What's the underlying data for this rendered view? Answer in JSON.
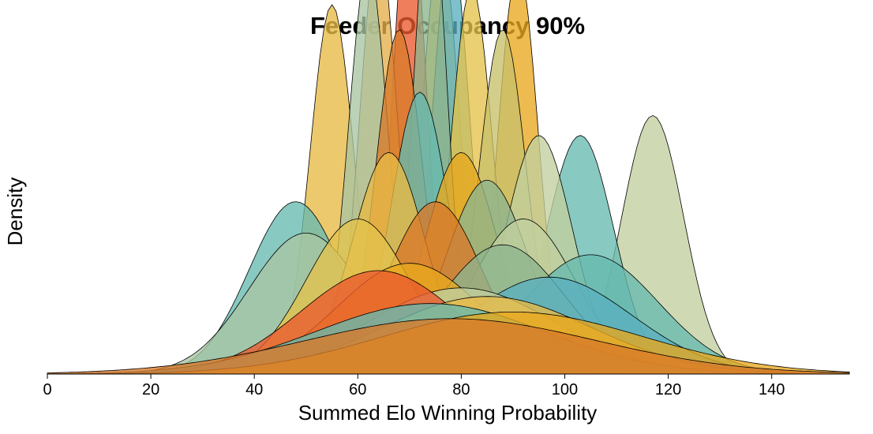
{
  "chart_data": {
    "type": "area",
    "title": "Feeder Occupancy 90%",
    "xlabel": "Summed Elo Winning Probability",
    "ylabel": "Density",
    "xlim": [
      0,
      155
    ],
    "ylim": [
      0,
      0.082
    ],
    "x_ticks": [
      0,
      20,
      40,
      60,
      80,
      100,
      120,
      140
    ],
    "x_tick_labels": [
      "0",
      "20",
      "40",
      "60",
      "80",
      "100",
      "120",
      "140"
    ],
    "y_ticks_shown": false,
    "grid": false,
    "legend": "none",
    "palette": [
      "#E8A81E",
      "#EB5A2E",
      "#66BAB0",
      "#C2CF9F",
      "#E4C34C",
      "#8DB58E",
      "#D97A2A",
      "#5AAFBF",
      "#A9B56A",
      "#E06A55"
    ],
    "series": [
      {
        "mean": 55,
        "sd": 4.2,
        "color": "#E8BA45"
      },
      {
        "mean": 76,
        "sd": 3.6,
        "color": "#E4C34C"
      },
      {
        "mean": 78,
        "sd": 3.6,
        "color": "#5AAFBF"
      },
      {
        "mean": 117,
        "sd": 6.0,
        "color": "#C2CF9F"
      },
      {
        "mean": 103,
        "sd": 6.5,
        "color": "#66BAB0"
      },
      {
        "mean": 70,
        "sd": 3.2,
        "color": "#EB5A2E"
      },
      {
        "mean": 64,
        "sd": 3.6,
        "color": "#E4B04A"
      },
      {
        "mean": 62,
        "sd": 3.8,
        "color": "#A9C5A3"
      },
      {
        "mean": 91,
        "sd": 3.8,
        "color": "#E8A81E"
      },
      {
        "mean": 82,
        "sd": 4.0,
        "color": "#E4C34C"
      },
      {
        "mean": 74,
        "sd": 3.2,
        "color": "#8DB58E"
      },
      {
        "mean": 68,
        "sd": 4.5,
        "color": "#D97A2A"
      },
      {
        "mean": 88,
        "sd": 4.5,
        "color": "#C8C06A"
      },
      {
        "mean": 72,
        "sd": 5.5,
        "color": "#66BAB0"
      },
      {
        "mean": 95,
        "sd": 6.5,
        "color": "#C2CF9F"
      },
      {
        "mean": 48,
        "sd": 9.0,
        "color": "#66BAB0"
      },
      {
        "mean": 50,
        "sd": 11.0,
        "color": "#A9C5A3"
      },
      {
        "mean": 80,
        "sd": 7.0,
        "color": "#E8A81E"
      },
      {
        "mean": 85,
        "sd": 8.0,
        "color": "#8DB58E"
      },
      {
        "mean": 66,
        "sd": 7.0,
        "color": "#E8BA45"
      },
      {
        "mean": 92,
        "sd": 10.0,
        "color": "#C2CF9F"
      },
      {
        "mean": 105,
        "sd": 13.0,
        "color": "#66BAB0"
      },
      {
        "mean": 75,
        "sd": 9.0,
        "color": "#D97A2A"
      },
      {
        "mean": 60,
        "sd": 10.0,
        "color": "#E4C34C"
      },
      {
        "mean": 88,
        "sd": 12.0,
        "color": "#8DB58E"
      },
      {
        "mean": 70,
        "sd": 14.0,
        "color": "#E8A81E"
      },
      {
        "mean": 97,
        "sd": 16.0,
        "color": "#5AAFBF"
      },
      {
        "mean": 80,
        "sd": 18.0,
        "color": "#C2CF9F"
      },
      {
        "mean": 64,
        "sd": 15.0,
        "color": "#EB5A2E"
      },
      {
        "mean": 85,
        "sd": 20.0,
        "color": "#E8BA45"
      },
      {
        "mean": 74,
        "sd": 22.0,
        "color": "#66BAB0"
      },
      {
        "mean": 90,
        "sd": 25.0,
        "color": "#E8A81E"
      },
      {
        "mean": 78,
        "sd": 28.0,
        "color": "#D97A2A"
      }
    ]
  }
}
